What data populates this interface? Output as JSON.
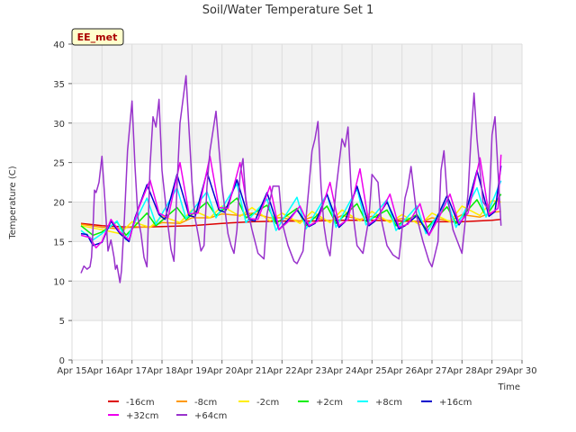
{
  "chart_data": {
    "type": "line",
    "title": "Soil/Water Temperature Set 1",
    "xlabel": "Time",
    "ylabel": "Temperature (C)",
    "xlim": [
      15,
      30
    ],
    "ylim": [
      0,
      40
    ],
    "x_ticks": [
      {
        "v": 15,
        "label": "Apr 15"
      },
      {
        "v": 16,
        "label": "Apr 16"
      },
      {
        "v": 17,
        "label": "Apr 17"
      },
      {
        "v": 18,
        "label": "Apr 18"
      },
      {
        "v": 19,
        "label": "Apr 19"
      },
      {
        "v": 20,
        "label": "Apr 20"
      },
      {
        "v": 21,
        "label": "Apr 21"
      },
      {
        "v": 22,
        "label": "Apr 22"
      },
      {
        "v": 23,
        "label": "Apr 23"
      },
      {
        "v": 24,
        "label": "Apr 24"
      },
      {
        "v": 25,
        "label": "Apr 25"
      },
      {
        "v": 26,
        "label": "Apr 26"
      },
      {
        "v": 27,
        "label": "Apr 27"
      },
      {
        "v": 28,
        "label": "Apr 28"
      },
      {
        "v": 29,
        "label": "Apr 29"
      },
      {
        "v": 30,
        "label": "Apr 30"
      }
    ],
    "y_ticks": [
      0,
      5,
      10,
      15,
      20,
      25,
      30,
      35,
      40
    ],
    "grid": true,
    "site_label": "EE_met",
    "legend_position": "bottom",
    "series": [
      {
        "name": "-16cm",
        "color": "#dd0000",
        "x": [
          15.3,
          16,
          17,
          18,
          19,
          20,
          21,
          22,
          23,
          24,
          25,
          26,
          27,
          28,
          29,
          29.3
        ],
        "y": [
          17.3,
          17.0,
          16.8,
          16.9,
          17.0,
          17.3,
          17.5,
          17.6,
          17.6,
          17.7,
          17.7,
          17.6,
          17.5,
          17.5,
          17.7,
          17.8
        ]
      },
      {
        "name": "-8cm",
        "color": "#ff9900",
        "x": [
          15.3,
          16,
          16.6,
          17,
          17.6,
          18,
          18.6,
          19,
          19.6,
          20,
          20.6,
          21,
          21.6,
          22,
          22.6,
          23,
          23.6,
          24,
          24.6,
          25,
          25.6,
          26,
          26.6,
          27,
          27.6,
          28,
          28.6,
          29,
          29.3
        ],
        "y": [
          17.2,
          16.8,
          16.6,
          16.9,
          16.8,
          17.4,
          17.3,
          18.0,
          18.0,
          18.5,
          18.3,
          18.6,
          18.0,
          18.0,
          17.6,
          18.1,
          17.6,
          18.3,
          17.8,
          18.2,
          17.6,
          17.9,
          17.4,
          18.0,
          17.6,
          18.4,
          18.1,
          18.7,
          18.8
        ]
      },
      {
        "name": "-2cm",
        "color": "#ffee00",
        "x": [
          15.3,
          16,
          16.6,
          17,
          17.6,
          18,
          18.6,
          19,
          19.6,
          20,
          20.6,
          21,
          21.6,
          22,
          22.6,
          23,
          23.6,
          24,
          24.6,
          25,
          25.6,
          26,
          26.6,
          27,
          27.6,
          28,
          28.6,
          29,
          29.3
        ],
        "y": [
          17.0,
          16.5,
          16.0,
          17.5,
          16.8,
          18.2,
          17.4,
          19.0,
          18.0,
          19.5,
          18.2,
          19.3,
          17.6,
          18.6,
          17.3,
          18.8,
          17.4,
          19.0,
          17.6,
          18.8,
          17.4,
          18.4,
          17.1,
          18.6,
          17.5,
          19.5,
          18.3,
          20.2,
          20.0
        ]
      },
      {
        "name": "+2cm",
        "color": "#00ee00",
        "x": [
          15.3,
          15.7,
          16,
          16.5,
          16.8,
          17.5,
          17.8,
          18.5,
          18.8,
          19.5,
          19.8,
          20.5,
          20.8,
          21.5,
          21.8,
          22.5,
          22.8,
          23.5,
          23.8,
          24.5,
          24.8,
          25.5,
          25.8,
          26.5,
          26.8,
          27.5,
          27.8,
          28.5,
          28.8,
          29.3
        ],
        "y": [
          17.0,
          15.8,
          16.2,
          17.5,
          15.8,
          18.6,
          17.0,
          19.3,
          17.8,
          20.0,
          18.3,
          20.5,
          18.0,
          19.6,
          17.3,
          19.2,
          17.0,
          19.5,
          17.3,
          19.8,
          17.5,
          19.0,
          17.0,
          18.4,
          16.6,
          19.4,
          17.3,
          20.3,
          18.2,
          21.0
        ]
      },
      {
        "name": "+8cm",
        "color": "#00ffff",
        "x": [
          15.3,
          15.7,
          16,
          16.5,
          16.8,
          17.5,
          17.8,
          18.5,
          18.8,
          19.5,
          19.8,
          20.5,
          20.8,
          21.5,
          21.8,
          22.5,
          22.8,
          23.5,
          23.8,
          24.5,
          24.8,
          25.5,
          25.8,
          26.5,
          26.8,
          27.5,
          27.8,
          28.5,
          28.8,
          29.3
        ],
        "y": [
          16.4,
          15.2,
          16.0,
          17.6,
          15.2,
          20.5,
          17.2,
          21.8,
          17.9,
          21.3,
          18.0,
          22.3,
          17.4,
          20.4,
          16.4,
          20.6,
          16.6,
          21.0,
          16.8,
          21.7,
          17.1,
          20.3,
          16.4,
          19.5,
          16.0,
          20.2,
          16.8,
          21.8,
          18.1,
          22.7
        ]
      },
      {
        "name": "+16cm",
        "color": "#0000cc",
        "x": [
          15.3,
          15.5,
          15.7,
          16,
          16.3,
          16.6,
          16.9,
          17.1,
          17.5,
          17.9,
          18.1,
          18.5,
          18.9,
          19.1,
          19.5,
          19.9,
          20.1,
          20.5,
          20.9,
          21.1,
          21.5,
          21.9,
          22.1,
          22.5,
          22.9,
          23.1,
          23.5,
          23.9,
          24.1,
          24.5,
          24.9,
          25.1,
          25.5,
          25.9,
          26.1,
          26.5,
          26.9,
          27.1,
          27.5,
          27.9,
          28.1,
          28.5,
          28.9,
          29.1,
          29.3
        ],
        "y": [
          16.0,
          15.9,
          14.5,
          14.9,
          17.6,
          16.0,
          15.0,
          18.0,
          22.2,
          18.4,
          17.8,
          23.5,
          18.3,
          18.1,
          23.8,
          19.0,
          18.7,
          22.8,
          17.8,
          17.6,
          21.2,
          16.5,
          17.3,
          19.0,
          16.9,
          17.3,
          21.0,
          16.8,
          17.5,
          22.0,
          17.0,
          17.6,
          20.0,
          16.6,
          17.0,
          18.3,
          15.8,
          17.5,
          20.8,
          17.1,
          18.3,
          24.0,
          18.2,
          18.8,
          24.6
        ]
      },
      {
        "name": "+32cm",
        "color": "#ee00ee",
        "x": [
          15.3,
          15.6,
          15.8,
          16,
          16.3,
          16.6,
          16.9,
          17.2,
          17.6,
          17.9,
          18.2,
          18.6,
          18.9,
          19.2,
          19.6,
          19.9,
          20.2,
          20.6,
          20.9,
          21.2,
          21.6,
          21.9,
          22.2,
          22.6,
          22.9,
          23.2,
          23.6,
          23.9,
          24.2,
          24.6,
          24.9,
          25.2,
          25.6,
          25.9,
          26.2,
          26.6,
          26.9,
          27.2,
          27.6,
          27.9,
          28.2,
          28.6,
          28.9,
          29.2,
          29.3
        ],
        "y": [
          15.8,
          15.5,
          14.2,
          15.0,
          17.8,
          16.2,
          15.2,
          19.0,
          22.8,
          18.6,
          18.0,
          25.0,
          18.5,
          18.6,
          25.8,
          19.3,
          19.2,
          25.0,
          17.9,
          17.8,
          22.0,
          16.5,
          17.5,
          19.5,
          17.0,
          17.6,
          22.5,
          17.0,
          17.8,
          24.2,
          17.2,
          18.0,
          21.0,
          16.8,
          17.2,
          19.8,
          15.8,
          17.8,
          21.0,
          17.3,
          18.6,
          25.6,
          18.4,
          19.2,
          26.0
        ]
      },
      {
        "name": "+64cm",
        "color": "#9933cc",
        "x": [
          15.3,
          15.4,
          15.5,
          15.6,
          15.65,
          15.7,
          15.75,
          15.8,
          15.85,
          15.9,
          16.0,
          16.1,
          16.2,
          16.3,
          16.4,
          16.45,
          16.5,
          16.6,
          16.65,
          16.75,
          16.85,
          16.9,
          17.0,
          17.1,
          17.2,
          17.3,
          17.4,
          17.5,
          17.6,
          17.7,
          17.8,
          17.9,
          18.0,
          18.2,
          18.3,
          18.4,
          18.5,
          18.6,
          18.8,
          19.0,
          19.1,
          19.2,
          19.3,
          19.4,
          19.5,
          19.6,
          19.8,
          20.0,
          20.2,
          20.3,
          20.4,
          20.5,
          20.6,
          20.7,
          20.8,
          21.0,
          21.2,
          21.4,
          21.5,
          21.7,
          21.9,
          22.0,
          22.2,
          22.4,
          22.5,
          22.7,
          22.9,
          23.0,
          23.1,
          23.2,
          23.3,
          23.4,
          23.5,
          23.6,
          23.8,
          24.0,
          24.1,
          24.2,
          24.3,
          24.4,
          24.5,
          24.7,
          24.9,
          25.0,
          25.2,
          25.3,
          25.5,
          25.7,
          25.9,
          26.0,
          26.1,
          26.2,
          26.3,
          26.5,
          26.7,
          26.9,
          27.0,
          27.2,
          27.3,
          27.4,
          27.5,
          27.7,
          27.9,
          28.0,
          28.2,
          28.3,
          28.4,
          28.5,
          28.7,
          28.9,
          29.0,
          29.1,
          29.2,
          29.3
        ],
        "y": [
          11.0,
          11.9,
          11.5,
          11.8,
          13.0,
          16.5,
          21.5,
          21.2,
          21.8,
          22.5,
          25.8,
          20.0,
          13.8,
          15.2,
          13.0,
          11.5,
          12.0,
          9.8,
          11.3,
          18.0,
          26.5,
          28.5,
          32.8,
          24.5,
          18.0,
          16.0,
          13.0,
          11.8,
          24.5,
          30.8,
          29.5,
          33.0,
          24.0,
          17.0,
          14.0,
          12.5,
          22.0,
          30.0,
          36.0,
          22.5,
          18.0,
          16.0,
          13.8,
          14.5,
          22.0,
          26.5,
          31.5,
          22.0,
          16.0,
          14.5,
          13.5,
          16.5,
          23.5,
          25.5,
          20.0,
          16.5,
          13.5,
          12.8,
          18.5,
          22.0,
          22.0,
          17.5,
          14.5,
          12.5,
          12.2,
          13.8,
          22.0,
          26.5,
          28.0,
          30.2,
          22.0,
          17.0,
          14.5,
          13.2,
          21.5,
          28.0,
          27.0,
          29.5,
          22.0,
          17.5,
          14.5,
          13.5,
          18.0,
          23.5,
          22.5,
          18.0,
          14.5,
          13.3,
          12.8,
          16.5,
          20.5,
          22.0,
          24.5,
          18.0,
          15.0,
          12.5,
          11.8,
          15.0,
          24.0,
          26.5,
          21.0,
          16.5,
          14.5,
          13.5,
          21.0,
          28.0,
          33.8,
          28.0,
          20.0,
          19.0,
          28.5,
          30.8,
          24.0,
          17.0
        ]
      }
    ]
  }
}
